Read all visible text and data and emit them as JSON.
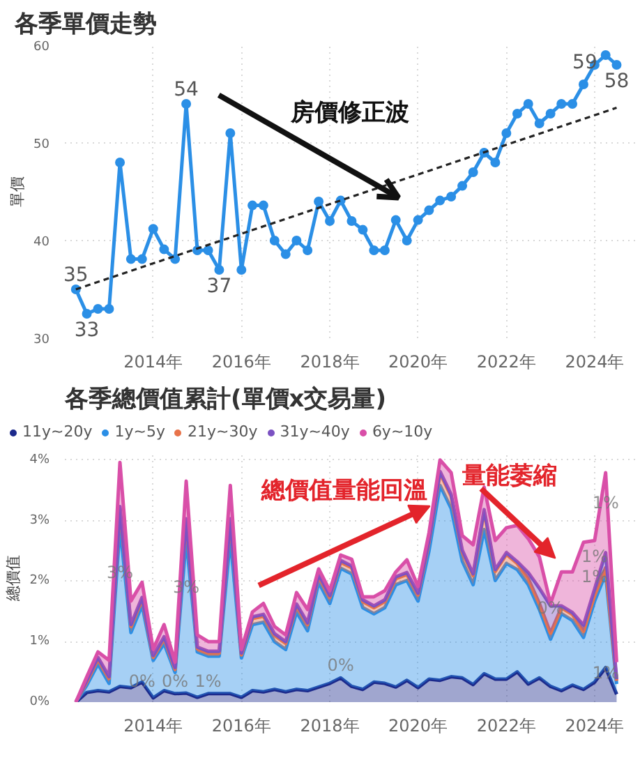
{
  "chart_data": [
    {
      "type": "line",
      "title": "各季單價走勢",
      "ylabel": "單價",
      "marker": "circle",
      "line_style": "solid",
      "grid": true,
      "x": [
        "2012-04",
        "2012-07",
        "2012-10",
        "2013-01",
        "2013-04",
        "2013-07",
        "2013-10",
        "2014-01",
        "2014-04",
        "2014-07",
        "2014-10",
        "2015-01",
        "2015-04",
        "2015-07",
        "2015-10",
        "2016-01",
        "2016-04",
        "2016-07",
        "2016-10",
        "2017-01",
        "2017-04",
        "2017-07",
        "2017-10",
        "2018-01",
        "2018-04",
        "2018-07",
        "2018-10",
        "2019-01",
        "2019-04",
        "2019-07",
        "2019-10",
        "2020-01",
        "2020-04",
        "2020-07",
        "2020-10",
        "2021-01",
        "2021-04",
        "2021-07",
        "2021-10",
        "2022-01",
        "2022-04",
        "2022-07",
        "2022-10",
        "2023-01",
        "2023-04",
        "2023-07",
        "2023-10",
        "2024-01",
        "2024-04",
        "2024-07"
      ],
      "series": [
        {
          "color": "#2b8fe6",
          "values": [
            35,
            32.5,
            33,
            33,
            48,
            38.1,
            38.1,
            41.2,
            39.1,
            38.1,
            54,
            39,
            39,
            37,
            51,
            37,
            43.6,
            43.6,
            40,
            38.6,
            40,
            39,
            44,
            42,
            44.1,
            42,
            41.1,
            39,
            39,
            42.1,
            40,
            42.1,
            43.1,
            44.1,
            44.5,
            45.6,
            47,
            49,
            48,
            51,
            53,
            54,
            52,
            53,
            54,
            54,
            56,
            58,
            59,
            58
          ],
          "value_labels": [
            "35",
            "33",
            null,
            null,
            null,
            null,
            null,
            null,
            null,
            null,
            "54",
            null,
            null,
            "37",
            null,
            null,
            null,
            null,
            null,
            null,
            null,
            null,
            null,
            null,
            null,
            null,
            null,
            null,
            null,
            null,
            null,
            null,
            null,
            null,
            null,
            null,
            null,
            null,
            null,
            null,
            null,
            null,
            null,
            null,
            null,
            null,
            null,
            null,
            "59",
            "58"
          ]
        },
        {
          "type": "line",
          "x": [
            "2012-04",
            "2024-07"
          ],
          "values": [
            35,
            53.6
          ],
          "color": "#222222",
          "line_style": "dashed",
          "marker": "none"
        }
      ],
      "xlim": [
        "2012-01",
        "2024-12"
      ],
      "xticks": [
        {
          "value": "2014-01",
          "label": "2014年"
        },
        {
          "value": "2016-01",
          "label": "2016年"
        },
        {
          "value": "2018-01",
          "label": "2018年"
        },
        {
          "value": "2020-01",
          "label": "2020年"
        },
        {
          "value": "2022-01",
          "label": "2022年"
        },
        {
          "value": "2024-01",
          "label": "2024年"
        }
      ],
      "ylim": [
        30,
        60
      ],
      "yticks": [
        30,
        40,
        50,
        60
      ],
      "annotations": [
        "房價修正波"
      ]
    },
    {
      "type": "area",
      "stacked": true,
      "title": "各季總價值累計(單價x交易量)",
      "ylabel": "總價值",
      "grid": true,
      "legend": "top",
      "x": [
        "2012-04",
        "2012-07",
        "2012-10",
        "2013-01",
        "2013-04",
        "2013-07",
        "2013-10",
        "2014-01",
        "2014-04",
        "2014-07",
        "2014-10",
        "2015-01",
        "2015-04",
        "2015-07",
        "2015-10",
        "2016-01",
        "2016-04",
        "2016-07",
        "2016-10",
        "2017-01",
        "2017-04",
        "2017-07",
        "2017-10",
        "2018-01",
        "2018-04",
        "2018-07",
        "2018-10",
        "2019-01",
        "2019-04",
        "2019-07",
        "2019-10",
        "2020-01",
        "2020-04",
        "2020-07",
        "2020-10",
        "2021-01",
        "2021-04",
        "2021-07",
        "2021-10",
        "2022-01",
        "2022-04",
        "2022-07",
        "2022-10",
        "2023-01",
        "2023-04",
        "2023-07",
        "2023-10",
        "2024-01",
        "2024-04",
        "2024-07"
      ],
      "series": [
        {
          "name": "11y~20y",
          "color": "#1c2a8c",
          "values": [
            0,
            0.16,
            0.19,
            0.17,
            0.26,
            0.24,
            0.33,
            0.07,
            0.19,
            0.14,
            0.15,
            0.08,
            0.14,
            0.14,
            0.14,
            0.08,
            0.19,
            0.17,
            0.21,
            0.17,
            0.21,
            0.19,
            0.25,
            0.31,
            0.4,
            0.26,
            0.21,
            0.33,
            0.31,
            0.25,
            0.36,
            0.24,
            0.38,
            0.36,
            0.42,
            0.4,
            0.29,
            0.47,
            0.38,
            0.38,
            0.5,
            0.3,
            0.4,
            0.26,
            0.19,
            0.28,
            0.21,
            0.33,
            0.57,
            0.13
          ]
        },
        {
          "name": "1y~5y",
          "color": "#2b8fe6",
          "values": [
            0,
            0.12,
            0.44,
            0.14,
            2.64,
            0.91,
            1.27,
            0.62,
            0.78,
            0.35,
            2.55,
            0.75,
            0.62,
            0.62,
            2.56,
            0.65,
            1.09,
            1.15,
            0.79,
            0.7,
            1.28,
            0.99,
            1.73,
            1.32,
            1.81,
            1.86,
            1.35,
            1.13,
            1.25,
            1.69,
            1.65,
            1.43,
            2.12,
            3.22,
            2.78,
            1.93,
            1.65,
            2.38,
            1.63,
            1.91,
            1.69,
            1.64,
            1.13,
            0.78,
            1.27,
            1.07,
            0.86,
            1.34,
            1.55,
            0.17
          ]
        },
        {
          "name": "21y~30y",
          "color": "#e8734a",
          "values": [
            0,
            0.05,
            0.08,
            0.08,
            0.3,
            0.1,
            0.1,
            0.05,
            0.08,
            0.05,
            0.3,
            0.05,
            0.05,
            0.05,
            0.3,
            0.05,
            0.1,
            0.1,
            0.1,
            0.1,
            0.1,
            0.1,
            0.1,
            0.1,
            0.1,
            0.1,
            0.1,
            0.1,
            0.1,
            0.1,
            0.1,
            0.1,
            0.15,
            0.2,
            0.2,
            0.15,
            0.15,
            0.3,
            0.15,
            0.15,
            0.1,
            0.1,
            0.1,
            0.1,
            0.1,
            0.1,
            0.1,
            0.1,
            0.1,
            0.05
          ]
        },
        {
          "name": "31y~40y",
          "color": "#7b52c2",
          "values": [
            0,
            0.03,
            0.03,
            0.03,
            0.03,
            0.03,
            0.03,
            0.03,
            0.03,
            0.03,
            0.03,
            0.03,
            0.03,
            0.03,
            0.03,
            0.03,
            0.03,
            0.03,
            0.03,
            0.03,
            0.03,
            0.03,
            0.03,
            0.03,
            0.03,
            0.03,
            0.03,
            0.03,
            0.03,
            0.03,
            0.03,
            0.03,
            0.03,
            0.03,
            0.03,
            0.03,
            0.03,
            0.03,
            0.03,
            0.03,
            0.03,
            0.1,
            0.25,
            0.45,
            0.03,
            0.03,
            0.1,
            0.1,
            0.25,
            0.03
          ]
        },
        {
          "name": "6y~10y",
          "color": "#d94fa8",
          "values": [
            0,
            0.06,
            0.09,
            0.27,
            0.73,
            0.39,
            0.25,
            0.1,
            0.2,
            0.09,
            0.62,
            0.2,
            0.16,
            0.16,
            0.55,
            0.06,
            0.08,
            0.18,
            0.12,
            0.11,
            0.19,
            0.22,
            0.09,
            0.08,
            0.09,
            0.11,
            0.05,
            0.15,
            0.15,
            0.08,
            0.21,
            0.11,
            0.12,
            0.19,
            0.36,
            0.24,
            0.48,
            0.37,
            0.48,
            0.41,
            0.6,
            0.56,
            0.52,
            0.04,
            0.56,
            0.67,
            1.37,
            0.8,
            1.32,
            0.28
          ]
        }
      ],
      "xlim": [
        "2012-01",
        "2024-12"
      ],
      "xticks": [
        {
          "value": "2014-01",
          "label": "2014年"
        },
        {
          "value": "2016-01",
          "label": "2016年"
        },
        {
          "value": "2018-01",
          "label": "2018年"
        },
        {
          "value": "2020-01",
          "label": "2020年"
        },
        {
          "value": "2022-01",
          "label": "2022年"
        },
        {
          "value": "2024-01",
          "label": "2024年"
        }
      ],
      "ylim": [
        0,
        4.1
      ],
      "yticks": [
        {
          "value": 0,
          "label": "0%"
        },
        {
          "value": 1,
          "label": "1%"
        },
        {
          "value": 2,
          "label": "2%"
        },
        {
          "value": 3,
          "label": "3%"
        },
        {
          "value": 4,
          "label": "4%"
        }
      ],
      "annotations": [
        {
          "text": "3%",
          "x": "2013-04",
          "y": 1.93
        },
        {
          "text": "0%",
          "x": "2013-10",
          "y": 0.14
        },
        {
          "text": "0%",
          "x": "2014-07",
          "y": 0.14
        },
        {
          "text": "3%",
          "x": "2014-10",
          "y": 1.69
        },
        {
          "text": "1%",
          "x": "2015-04",
          "y": 0.14
        },
        {
          "text": "0%",
          "x": "2018-04",
          "y": 0.4
        },
        {
          "text": "0%",
          "x": "2023-01",
          "y": 1.35
        },
        {
          "text": "1%",
          "x": "2024-01",
          "y": 1.87
        },
        {
          "text": "1%",
          "x": "2024-01",
          "y": 2.2
        },
        {
          "text": "1%",
          "x": "2024-04",
          "y": 3.09
        },
        {
          "text": "1%",
          "x": "2024-04",
          "y": 0.28
        },
        "總價值量能回溫",
        "量能萎縮"
      ]
    }
  ]
}
